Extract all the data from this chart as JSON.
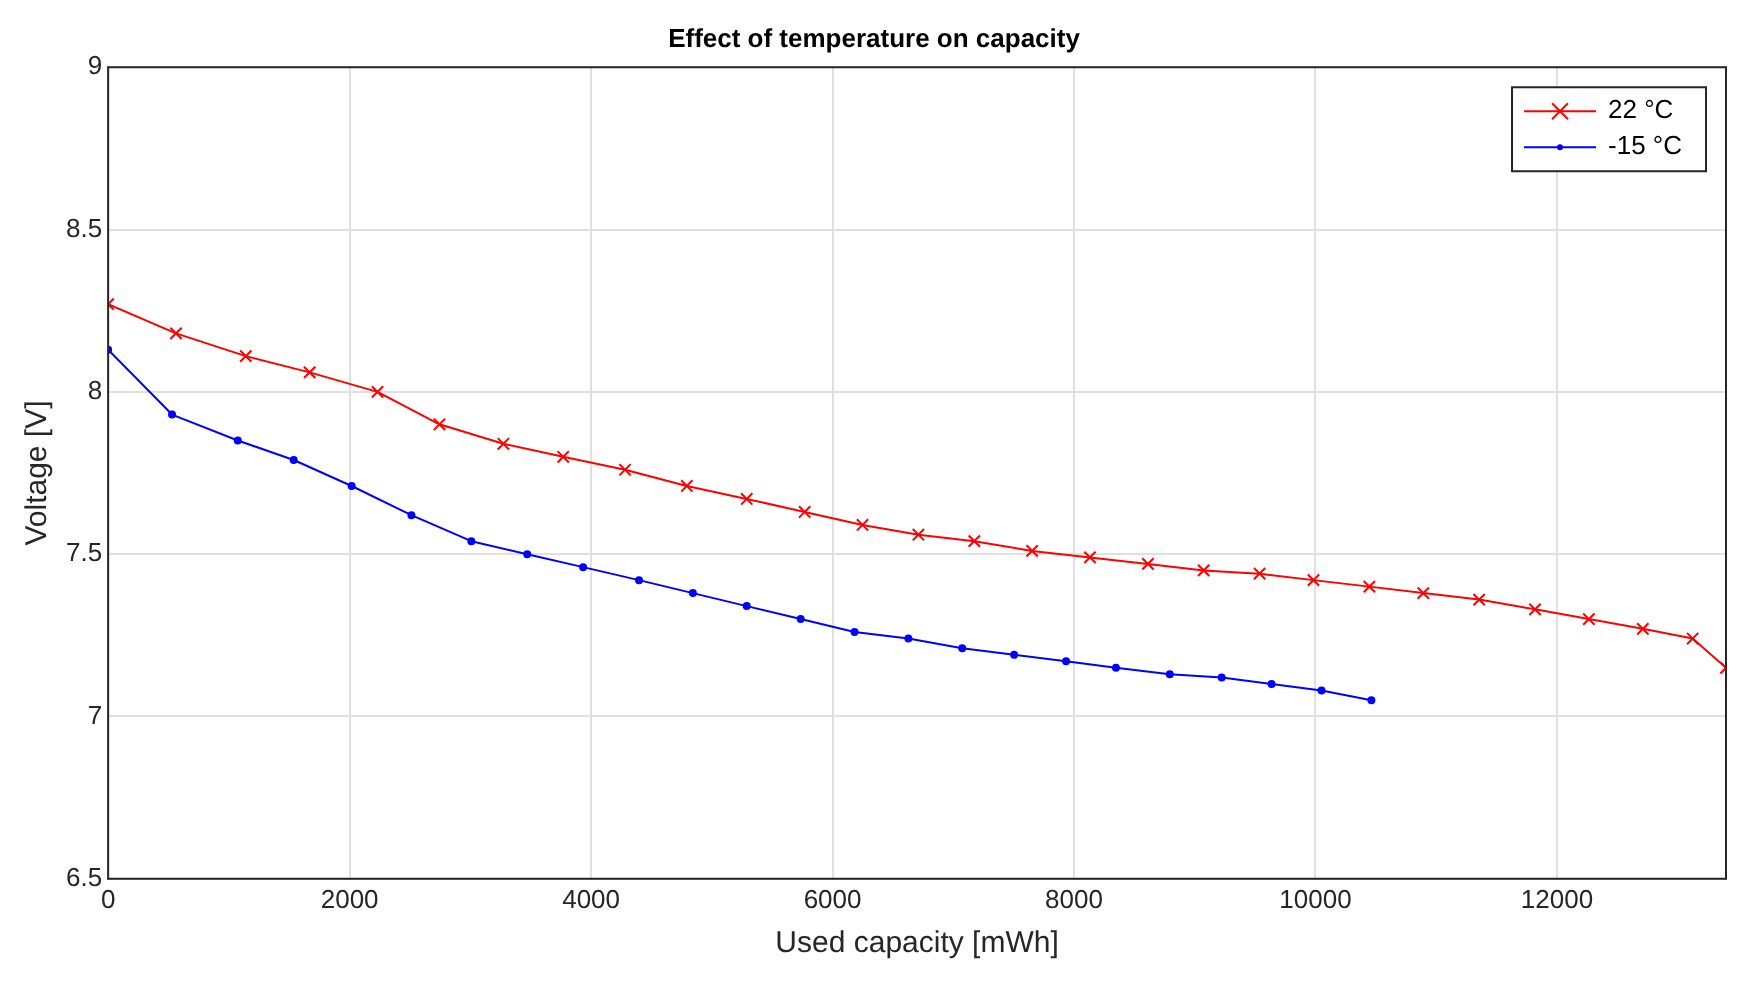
{
  "chart_data": {
    "type": "line",
    "title": "Effect of temperature on capacity",
    "xlabel": "Used capacity [mWh]",
    "ylabel": "Voltage [V]",
    "xlim": [
      0,
      13400
    ],
    "ylim": [
      6.5,
      9
    ],
    "xticks": [
      0,
      2000,
      4000,
      6000,
      8000,
      10000,
      12000
    ],
    "yticks": [
      6.5,
      7,
      7.5,
      8,
      8.5,
      9
    ],
    "grid": true,
    "legend": "top right",
    "line_style": "solid",
    "series": [
      {
        "name": "22 °C",
        "color": "#ff0000",
        "marker": "cross",
        "x": [
          0,
          562,
          1140,
          1669,
          2231,
          2744,
          3273,
          3769,
          4281,
          4793,
          5289,
          5769,
          6248,
          6711,
          7174,
          7653,
          8132,
          8612,
          9074,
          9537,
          9983,
          10446,
          10893,
          11355,
          11818,
          12264,
          12711,
          13124,
          13400
        ],
        "values": [
          8.27,
          8.18,
          8.11,
          8.06,
          8.0,
          7.9,
          7.84,
          7.8,
          7.76,
          7.71,
          7.67,
          7.63,
          7.59,
          7.56,
          7.54,
          7.51,
          7.49,
          7.47,
          7.45,
          7.44,
          7.42,
          7.4,
          7.38,
          7.36,
          7.33,
          7.3,
          7.27,
          7.24,
          7.15
        ]
      },
      {
        "name": "-15 °C",
        "color": "#0000ff",
        "marker": "circle",
        "x": [
          0,
          529,
          1074,
          1537,
          2017,
          2512,
          3008,
          3471,
          3934,
          4397,
          4843,
          5289,
          5736,
          6182,
          6628,
          7074,
          7504,
          7934,
          8347,
          8793,
          9223,
          9636,
          10050,
          10463
        ],
        "values": [
          8.13,
          7.93,
          7.85,
          7.79,
          7.71,
          7.62,
          7.54,
          7.5,
          7.46,
          7.42,
          7.38,
          7.34,
          7.3,
          7.26,
          7.24,
          7.21,
          7.19,
          7.17,
          7.15,
          7.13,
          7.12,
          7.1,
          7.08,
          7.05
        ]
      }
    ]
  }
}
